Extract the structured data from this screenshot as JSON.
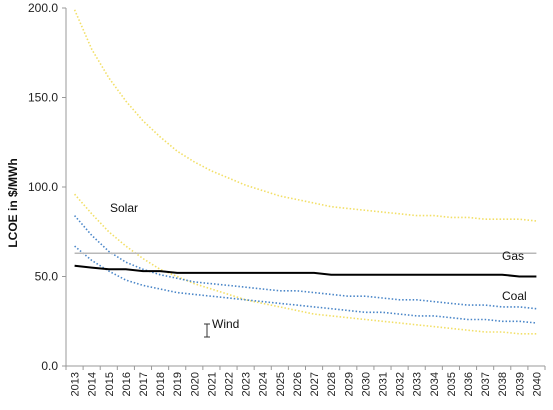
{
  "chart_data": {
    "type": "line",
    "title": "",
    "xlabel": "",
    "ylabel": "LCOE in $/MWh",
    "ylim": [
      0,
      200
    ],
    "yticks": [
      "0.0",
      "50.0",
      "100.0",
      "150.0",
      "200.0"
    ],
    "categories": [
      "2013",
      "2014",
      "2015",
      "2016",
      "2017",
      "2018",
      "2019",
      "2020",
      "2021",
      "2022",
      "2023",
      "2024",
      "2025",
      "2026",
      "2027",
      "2028",
      "2029",
      "2030",
      "2031",
      "2032",
      "2033",
      "2034",
      "2035",
      "2036",
      "2037",
      "2038",
      "2039",
      "2040"
    ],
    "annotations": [
      "Solar",
      "Gas",
      "Coal",
      "Wind"
    ],
    "series": [
      {
        "color": "#f2df66",
        "style": "dotted",
        "values": [
          199,
          177,
          161,
          148,
          137,
          128,
          120,
          114,
          109,
          105,
          101,
          98,
          95,
          93,
          91,
          89,
          88,
          87,
          86,
          85,
          84,
          84,
          83,
          83,
          82,
          82,
          82,
          81
        ]
      },
      {
        "color": "#f2df66",
        "style": "dotted",
        "values": [
          96,
          85,
          75,
          67,
          60,
          54,
          50,
          46,
          43,
          40,
          37,
          35,
          33,
          31,
          29,
          28,
          27,
          26,
          25,
          24,
          23,
          22,
          21,
          20,
          19,
          19,
          18,
          18
        ]
      },
      {
        "color": "#4a86c8",
        "style": "dotted",
        "values": [
          84,
          73,
          64,
          58,
          54,
          51,
          49,
          47,
          46,
          45,
          44,
          43,
          42,
          42,
          41,
          40,
          39,
          39,
          38,
          37,
          37,
          36,
          35,
          34,
          34,
          33,
          33,
          32
        ]
      },
      {
        "color": "#4a86c8",
        "style": "dotted",
        "values": [
          67,
          59,
          53,
          48,
          45,
          43,
          41,
          40,
          39,
          38,
          37,
          36,
          35,
          34,
          33,
          32,
          31,
          30,
          30,
          29,
          28,
          28,
          27,
          26,
          26,
          25,
          25,
          24
        ]
      },
      {
        "color": "#b8b8b8",
        "style": "solid",
        "values": [
          63,
          63,
          63,
          63,
          63,
          63,
          63,
          63,
          63,
          63,
          63,
          63,
          63,
          63,
          63,
          63,
          63,
          63,
          63,
          63,
          63,
          63,
          63,
          63,
          63,
          63,
          63,
          63
        ]
      },
      {
        "color": "#000000",
        "style": "solid",
        "values": [
          56,
          55,
          54,
          54,
          53,
          53,
          52,
          52,
          52,
          52,
          52,
          52,
          52,
          52,
          52,
          51,
          51,
          51,
          51,
          51,
          51,
          51,
          51,
          51,
          51,
          51,
          50,
          50
        ]
      }
    ]
  }
}
